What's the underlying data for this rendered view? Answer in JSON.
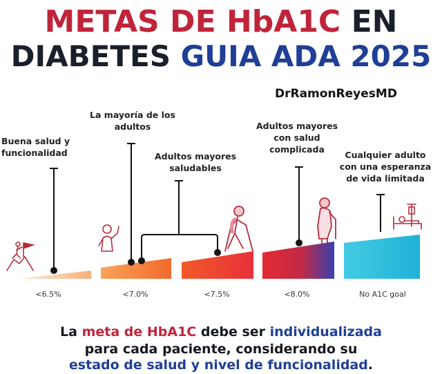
{
  "title": {
    "line1_part1": "METAS DE HbA1C",
    "line1_part2": "EN",
    "line2_part1": "DIABETES",
    "line2_part2": "GUIA ADA 2025"
  },
  "author": "DrRamonReyesMD",
  "categories": [
    {
      "caption": "Buena salud y\nfuncionalidad",
      "goal": "<6.5%",
      "icon": "summit-flag-climber-icon"
    },
    {
      "caption": "La mayoría de los\nadultos",
      "goal": "<7.0%",
      "icon": "person-waving-icon"
    },
    {
      "caption": "Adultos mayores\nsaludables",
      "goal": "<7.5%",
      "icon": "elderly-walking-poles-icon"
    },
    {
      "caption": "Adultos mayores\ncon salud\ncomplicada",
      "goal": "<8.0%",
      "icon": "elderly-cane-icon"
    },
    {
      "caption": "Cualquier adulto\ncon una esperanza\nde vida limitada",
      "goal": "No A1C goal",
      "icon": "hospital-bed-icon"
    }
  ],
  "colors": {
    "title_red": "#c0243a",
    "title_blue": "#1f3f97",
    "bar1": [
      "#fdebd8",
      "#f7b07a"
    ],
    "bar2": [
      "#f9a35a",
      "#f26a2a"
    ],
    "bar3": [
      "#f25a2a",
      "#e7303a"
    ],
    "bar4": [
      "#e42a32",
      "#3a3fb0"
    ],
    "bar5": [
      "#38c4df",
      "#21b4d8"
    ]
  },
  "footer": {
    "l1_a": "La ",
    "l1_b": "meta de HbA1C",
    "l1_c": " debe ser ",
    "l1_d": "individualizada",
    "l2": "para cada paciente, considerando su",
    "l3_a": "estado de salud y nivel de funcionalidad",
    "l3_b": "."
  }
}
